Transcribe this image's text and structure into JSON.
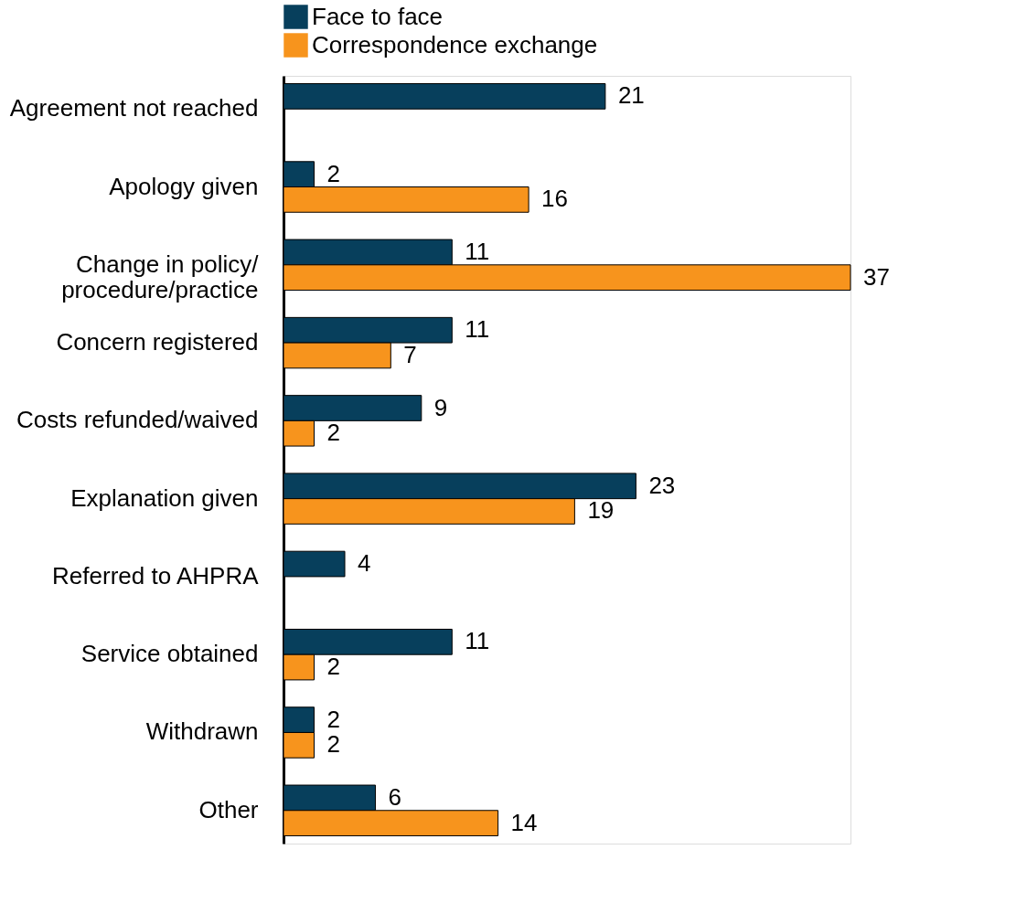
{
  "chart_data": {
    "type": "bar",
    "orientation": "horizontal",
    "data_labels": true,
    "legend": "top",
    "categories": [
      "Agreement not reached",
      "Apology given",
      "Change in policy/ procedure/practice",
      "Concern registered",
      "Costs refunded/waived",
      "Explanation given",
      "Referred to AHPRA",
      "Service obtained",
      "Withdrawn",
      "Other"
    ],
    "series": [
      {
        "name": "Face to face",
        "color": "#073f5c",
        "values": [
          21,
          2,
          11,
          11,
          9,
          23,
          4,
          11,
          2,
          6
        ]
      },
      {
        "name": "Correspondence exchange",
        "color": "#f7941d",
        "values": [
          null,
          16,
          37,
          7,
          2,
          19,
          null,
          2,
          2,
          14
        ]
      }
    ]
  }
}
